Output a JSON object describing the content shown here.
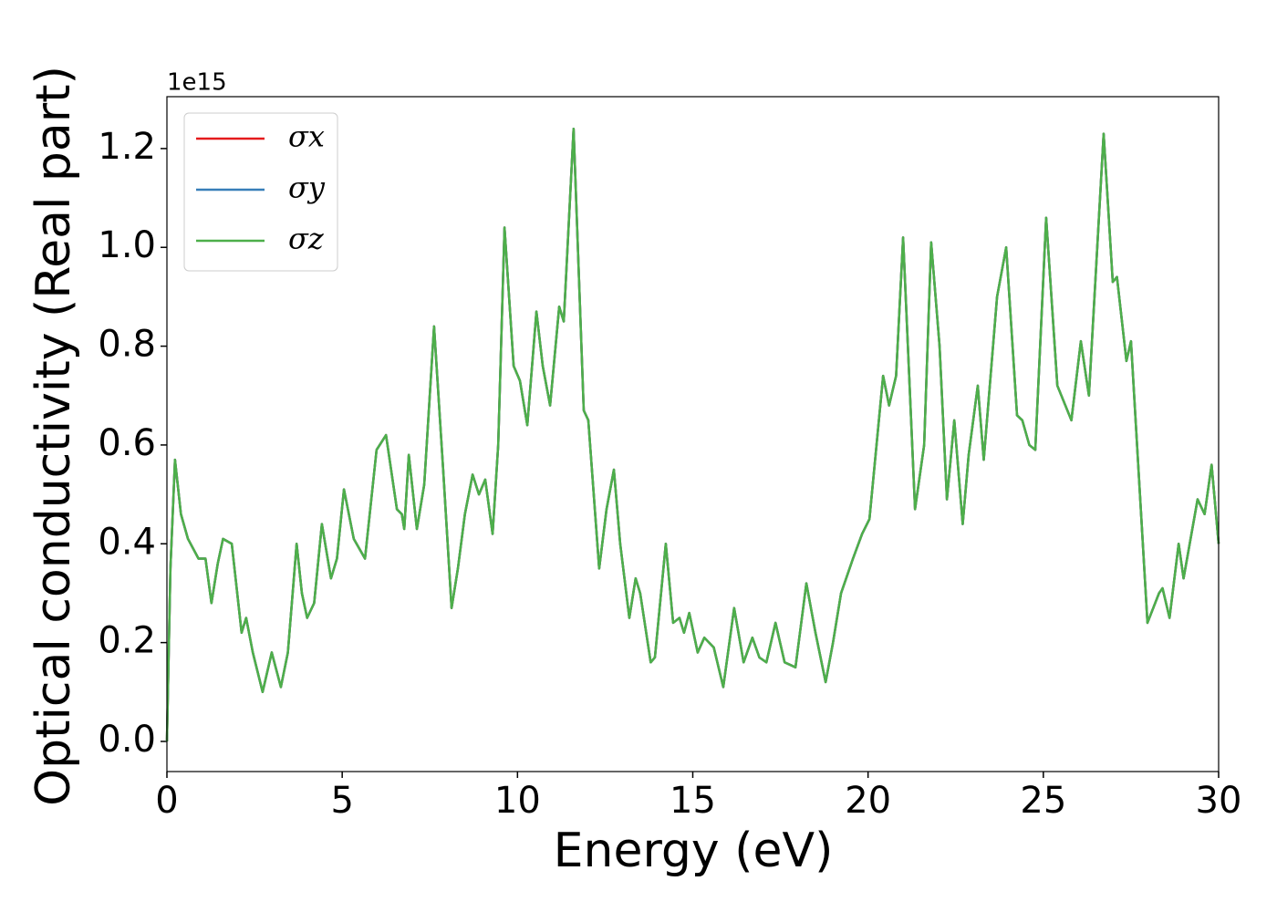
{
  "chart_data": {
    "type": "line",
    "xlabel": "Energy (eV)",
    "ylabel": "Optical conductivity (Real part)",
    "y_offset_label": "1e15",
    "x": [
      0,
      0.1,
      0.23,
      0.4,
      0.6,
      0.9,
      1.1,
      1.27,
      1.45,
      1.6,
      1.85,
      2.13,
      2.26,
      2.45,
      2.73,
      2.99,
      3.25,
      3.45,
      3.7,
      3.85,
      4.0,
      4.2,
      4.42,
      4.68,
      4.85,
      5.05,
      5.33,
      5.65,
      5.98,
      6.25,
      6.56,
      6.7,
      6.77,
      6.9,
      7.13,
      7.34,
      7.62,
      7.88,
      8.12,
      8.3,
      8.5,
      8.72,
      8.9,
      9.08,
      9.29,
      9.45,
      9.63,
      9.89,
      10.07,
      10.28,
      10.54,
      10.72,
      10.93,
      11.19,
      11.32,
      11.6,
      11.89,
      12.02,
      12.33,
      12.54,
      12.75,
      12.93,
      13.19,
      13.37,
      13.5,
      13.8,
      13.92,
      14.23,
      14.44,
      14.62,
      14.75,
      14.9,
      15.14,
      15.33,
      15.6,
      15.87,
      16.18,
      16.45,
      16.7,
      16.9,
      17.1,
      17.36,
      17.62,
      17.93,
      18.24,
      18.5,
      18.79,
      19.0,
      19.23,
      19.57,
      19.83,
      20.04,
      20.43,
      20.6,
      20.8,
      21.0,
      21.34,
      21.6,
      21.8,
      22.04,
      22.25,
      22.46,
      22.7,
      22.87,
      23.13,
      23.3,
      23.68,
      23.94,
      24.25,
      24.4,
      24.6,
      24.77,
      25.08,
      25.4,
      25.8,
      26.07,
      26.3,
      26.72,
      26.98,
      27.1,
      27.37,
      27.5,
      27.97,
      28.3,
      28.4,
      28.6,
      28.86,
      29.0,
      29.4,
      29.6,
      29.8,
      30
    ],
    "series": [
      {
        "name": "σx",
        "color": "#e41a1c",
        "values": [
          0.0,
          0.35,
          0.57,
          0.46,
          0.41,
          0.37,
          0.37,
          0.28,
          0.36,
          0.41,
          0.4,
          0.22,
          0.25,
          0.18,
          0.1,
          0.18,
          0.11,
          0.18,
          0.4,
          0.3,
          0.25,
          0.28,
          0.44,
          0.33,
          0.37,
          0.51,
          0.41,
          0.37,
          0.59,
          0.62,
          0.47,
          0.46,
          0.43,
          0.58,
          0.43,
          0.52,
          0.84,
          0.55,
          0.27,
          0.35,
          0.46,
          0.54,
          0.5,
          0.53,
          0.42,
          0.6,
          1.04,
          0.76,
          0.73,
          0.64,
          0.87,
          0.76,
          0.68,
          0.88,
          0.85,
          1.24,
          0.67,
          0.65,
          0.35,
          0.47,
          0.55,
          0.4,
          0.25,
          0.33,
          0.3,
          0.16,
          0.17,
          0.4,
          0.24,
          0.25,
          0.22,
          0.26,
          0.18,
          0.21,
          0.19,
          0.11,
          0.27,
          0.16,
          0.21,
          0.17,
          0.16,
          0.24,
          0.16,
          0.15,
          0.32,
          0.22,
          0.12,
          0.2,
          0.3,
          0.37,
          0.42,
          0.45,
          0.74,
          0.68,
          0.74,
          1.02,
          0.47,
          0.6,
          1.01,
          0.8,
          0.49,
          0.65,
          0.44,
          0.58,
          0.72,
          0.57,
          0.9,
          1.0,
          0.66,
          0.65,
          0.6,
          0.59,
          1.06,
          0.72,
          0.65,
          0.81,
          0.7,
          1.23,
          0.93,
          0.94,
          0.77,
          0.81,
          0.24,
          0.3,
          0.31,
          0.25,
          0.4,
          0.33,
          0.49,
          0.46,
          0.56,
          0.4
        ]
      },
      {
        "name": "σy",
        "color": "#377eb8",
        "values": [
          0.0,
          0.35,
          0.57,
          0.46,
          0.41,
          0.37,
          0.37,
          0.28,
          0.36,
          0.41,
          0.4,
          0.22,
          0.25,
          0.18,
          0.1,
          0.18,
          0.11,
          0.18,
          0.4,
          0.3,
          0.25,
          0.28,
          0.44,
          0.33,
          0.37,
          0.51,
          0.41,
          0.37,
          0.59,
          0.62,
          0.47,
          0.46,
          0.43,
          0.58,
          0.43,
          0.52,
          0.84,
          0.55,
          0.27,
          0.35,
          0.46,
          0.54,
          0.5,
          0.53,
          0.42,
          0.6,
          1.04,
          0.76,
          0.73,
          0.64,
          0.87,
          0.76,
          0.68,
          0.88,
          0.85,
          1.24,
          0.67,
          0.65,
          0.35,
          0.47,
          0.55,
          0.4,
          0.25,
          0.33,
          0.3,
          0.16,
          0.17,
          0.4,
          0.24,
          0.25,
          0.22,
          0.26,
          0.18,
          0.21,
          0.19,
          0.11,
          0.27,
          0.16,
          0.21,
          0.17,
          0.16,
          0.24,
          0.16,
          0.15,
          0.32,
          0.22,
          0.12,
          0.2,
          0.3,
          0.37,
          0.42,
          0.45,
          0.74,
          0.68,
          0.74,
          1.02,
          0.47,
          0.6,
          1.01,
          0.8,
          0.49,
          0.65,
          0.44,
          0.58,
          0.72,
          0.57,
          0.9,
          1.0,
          0.66,
          0.65,
          0.6,
          0.59,
          1.06,
          0.72,
          0.65,
          0.81,
          0.7,
          1.23,
          0.93,
          0.94,
          0.77,
          0.81,
          0.24,
          0.3,
          0.31,
          0.25,
          0.4,
          0.33,
          0.49,
          0.46,
          0.56,
          0.4
        ]
      },
      {
        "name": "σz",
        "color": "#4daf4a",
        "values": [
          0.0,
          0.35,
          0.57,
          0.46,
          0.41,
          0.37,
          0.37,
          0.28,
          0.36,
          0.41,
          0.4,
          0.22,
          0.25,
          0.18,
          0.1,
          0.18,
          0.11,
          0.18,
          0.4,
          0.3,
          0.25,
          0.28,
          0.44,
          0.33,
          0.37,
          0.51,
          0.41,
          0.37,
          0.59,
          0.62,
          0.47,
          0.46,
          0.43,
          0.58,
          0.43,
          0.52,
          0.84,
          0.55,
          0.27,
          0.35,
          0.46,
          0.54,
          0.5,
          0.53,
          0.42,
          0.6,
          1.04,
          0.76,
          0.73,
          0.64,
          0.87,
          0.76,
          0.68,
          0.88,
          0.85,
          1.24,
          0.67,
          0.65,
          0.35,
          0.47,
          0.55,
          0.4,
          0.25,
          0.33,
          0.3,
          0.16,
          0.17,
          0.4,
          0.24,
          0.25,
          0.22,
          0.26,
          0.18,
          0.21,
          0.19,
          0.11,
          0.27,
          0.16,
          0.21,
          0.17,
          0.16,
          0.24,
          0.16,
          0.15,
          0.32,
          0.22,
          0.12,
          0.2,
          0.3,
          0.37,
          0.42,
          0.45,
          0.74,
          0.68,
          0.74,
          1.02,
          0.47,
          0.6,
          1.01,
          0.8,
          0.49,
          0.65,
          0.44,
          0.58,
          0.72,
          0.57,
          0.9,
          1.0,
          0.66,
          0.65,
          0.6,
          0.59,
          1.06,
          0.72,
          0.65,
          0.81,
          0.7,
          1.23,
          0.93,
          0.94,
          0.77,
          0.81,
          0.24,
          0.3,
          0.31,
          0.25,
          0.4,
          0.33,
          0.49,
          0.46,
          0.56,
          0.4
        ]
      }
    ],
    "xlim": [
      0,
      30
    ],
    "xticks": [
      0,
      5,
      10,
      15,
      20,
      25,
      30
    ],
    "ylim": [
      -0.061,
      1.305
    ],
    "yticks": [
      {
        "value": 0,
        "label": "0.0"
      },
      0.2,
      0.4,
      0.6,
      0.8,
      {
        "value": 1,
        "label": "1.0"
      },
      1.2
    ],
    "grid": false,
    "legend": "upper left"
  }
}
